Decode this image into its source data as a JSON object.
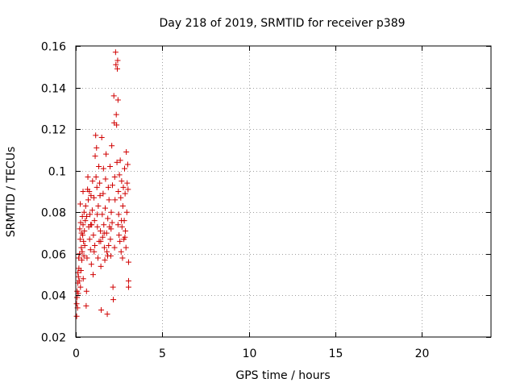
{
  "chart_data": {
    "type": "scatter",
    "title": "Day 218 of 2019, SRMTID for receiver p389",
    "xlabel": "GPS time / hours",
    "ylabel": "SRMTID / TECUs",
    "xlim": [
      0,
      24
    ],
    "ylim": [
      0.02,
      0.16
    ],
    "x_ticks": [
      0,
      5,
      10,
      15,
      20
    ],
    "x_tick_labels": [
      "0",
      "5",
      "10",
      "15",
      "20"
    ],
    "y_ticks": [
      0.02,
      0.04,
      0.06,
      0.08,
      0.1,
      0.12,
      0.14,
      0.16
    ],
    "y_tick_labels": [
      "0.02",
      "0.04",
      "0.06",
      "0.08",
      "0.1",
      "0.12",
      "0.14",
      "0.16"
    ],
    "grid": true,
    "marker": "plus",
    "color": "#d00000",
    "series": [
      {
        "name": "SRMTID",
        "points": [
          [
            0.05,
            0.03
          ],
          [
            0.05,
            0.036
          ],
          [
            0.07,
            0.039
          ],
          [
            0.08,
            0.042
          ],
          [
            0.1,
            0.034
          ],
          [
            0.12,
            0.046
          ],
          [
            0.14,
            0.041
          ],
          [
            0.15,
            0.049
          ],
          [
            0.17,
            0.058
          ],
          [
            0.18,
            0.053
          ],
          [
            0.2,
            0.047
          ],
          [
            0.22,
            0.06
          ],
          [
            0.23,
            0.072
          ],
          [
            0.25,
            0.067
          ],
          [
            0.27,
            0.044
          ],
          [
            0.28,
            0.075
          ],
          [
            0.3,
            0.052
          ],
          [
            0.32,
            0.063
          ],
          [
            0.33,
            0.07
          ],
          [
            0.35,
            0.057
          ],
          [
            0.37,
            0.061
          ],
          [
            0.38,
            0.078
          ],
          [
            0.4,
            0.069
          ],
          [
            0.42,
            0.074
          ],
          [
            0.43,
            0.048
          ],
          [
            0.45,
            0.066
          ],
          [
            0.47,
            0.059
          ],
          [
            0.48,
            0.08
          ],
          [
            0.5,
            0.071
          ],
          [
            0.52,
            0.064
          ],
          [
            0.55,
            0.076
          ],
          [
            0.57,
            0.083
          ],
          [
            0.6,
            0.035
          ],
          [
            0.62,
            0.042
          ],
          [
            0.65,
            0.058
          ],
          [
            0.68,
            0.091
          ],
          [
            0.7,
            0.097
          ],
          [
            0.72,
            0.086
          ],
          [
            0.75,
            0.073
          ],
          [
            0.78,
            0.09
          ],
          [
            0.8,
            0.067
          ],
          [
            0.82,
            0.079
          ],
          [
            0.85,
            0.062
          ],
          [
            0.88,
            0.088
          ],
          [
            0.9,
            0.055
          ],
          [
            0.92,
            0.074
          ],
          [
            0.95,
            0.081
          ],
          [
            0.97,
            0.095
          ],
          [
            1.0,
            0.05
          ],
          [
            1.02,
            0.069
          ],
          [
            1.05,
            0.087
          ],
          [
            1.08,
            0.076
          ],
          [
            1.1,
            0.064
          ],
          [
            1.12,
            0.107
          ],
          [
            1.15,
            0.117
          ],
          [
            1.17,
            0.097
          ],
          [
            1.2,
            0.111
          ],
          [
            1.22,
            0.092
          ],
          [
            1.25,
            0.073
          ],
          [
            1.28,
            0.058
          ],
          [
            1.3,
            0.083
          ],
          [
            1.33,
            0.102
          ],
          [
            1.35,
            0.066
          ],
          [
            1.38,
            0.094
          ],
          [
            1.4,
            0.088
          ],
          [
            1.42,
            0.071
          ],
          [
            1.45,
            0.054
          ],
          [
            1.47,
            0.033
          ],
          [
            1.5,
            0.116
          ],
          [
            1.53,
            0.079
          ],
          [
            1.55,
            0.068
          ],
          [
            1.58,
            0.089
          ],
          [
            1.6,
            0.101
          ],
          [
            1.62,
            0.074
          ],
          [
            1.65,
            0.063
          ],
          [
            1.68,
            0.057
          ],
          [
            1.7,
            0.082
          ],
          [
            1.72,
            0.096
          ],
          [
            1.75,
            0.108
          ],
          [
            1.78,
            0.07
          ],
          [
            1.8,
            0.061
          ],
          [
            1.82,
            0.031
          ],
          [
            1.85,
            0.077
          ],
          [
            1.88,
            0.092
          ],
          [
            1.9,
            0.064
          ],
          [
            1.92,
            0.086
          ],
          [
            1.95,
            0.073
          ],
          [
            1.98,
            0.102
          ],
          [
            2.0,
            0.067
          ],
          [
            2.02,
            0.059
          ],
          [
            2.05,
            0.08
          ],
          [
            2.08,
            0.112
          ],
          [
            2.1,
            0.075
          ],
          [
            2.12,
            0.093
          ],
          [
            2.15,
            0.044
          ],
          [
            2.17,
            0.038
          ],
          [
            2.2,
            0.136
          ],
          [
            2.22,
            0.123
          ],
          [
            2.25,
            0.097
          ],
          [
            2.27,
            0.086
          ],
          [
            2.3,
            0.157
          ],
          [
            2.32,
            0.151
          ],
          [
            2.34,
            0.127
          ],
          [
            2.36,
            0.122
          ],
          [
            2.38,
            0.104
          ],
          [
            2.4,
            0.149
          ],
          [
            2.42,
            0.153
          ],
          [
            2.44,
            0.134
          ],
          [
            2.46,
            0.09
          ],
          [
            2.48,
            0.079
          ],
          [
            2.5,
            0.069
          ],
          [
            2.52,
            0.098
          ],
          [
            2.55,
            0.066
          ],
          [
            2.57,
            0.105
          ],
          [
            2.6,
            0.087
          ],
          [
            2.62,
            0.061
          ],
          [
            2.65,
            0.095
          ],
          [
            2.67,
            0.073
          ],
          [
            2.7,
            0.058
          ],
          [
            2.72,
            0.083
          ],
          [
            2.75,
            0.092
          ],
          [
            2.78,
            0.067
          ],
          [
            2.8,
            0.076
          ],
          [
            2.82,
            0.101
          ],
          [
            2.85,
            0.089
          ],
          [
            2.87,
            0.071
          ],
          [
            2.9,
            0.063
          ],
          [
            2.92,
            0.109
          ],
          [
            2.95,
            0.08
          ],
          [
            2.97,
            0.094
          ],
          [
            3.0,
            0.103
          ],
          [
            3.02,
            0.091
          ],
          [
            3.05,
            0.056
          ],
          [
            3.05,
            0.047
          ],
          [
            3.05,
            0.044
          ],
          [
            0.12,
            0.051
          ],
          [
            0.26,
            0.084
          ],
          [
            0.42,
            0.09
          ],
          [
            0.63,
            0.078
          ],
          [
            0.86,
            0.074
          ],
          [
            1.06,
            0.061
          ],
          [
            1.24,
            0.079
          ],
          [
            1.44,
            0.066
          ],
          [
            1.64,
            0.07
          ],
          [
            1.84,
            0.059
          ],
          [
            2.04,
            0.072
          ],
          [
            2.24,
            0.063
          ],
          [
            2.44,
            0.074
          ],
          [
            2.64,
            0.076
          ],
          [
            2.84,
            0.068
          ]
        ]
      }
    ]
  }
}
